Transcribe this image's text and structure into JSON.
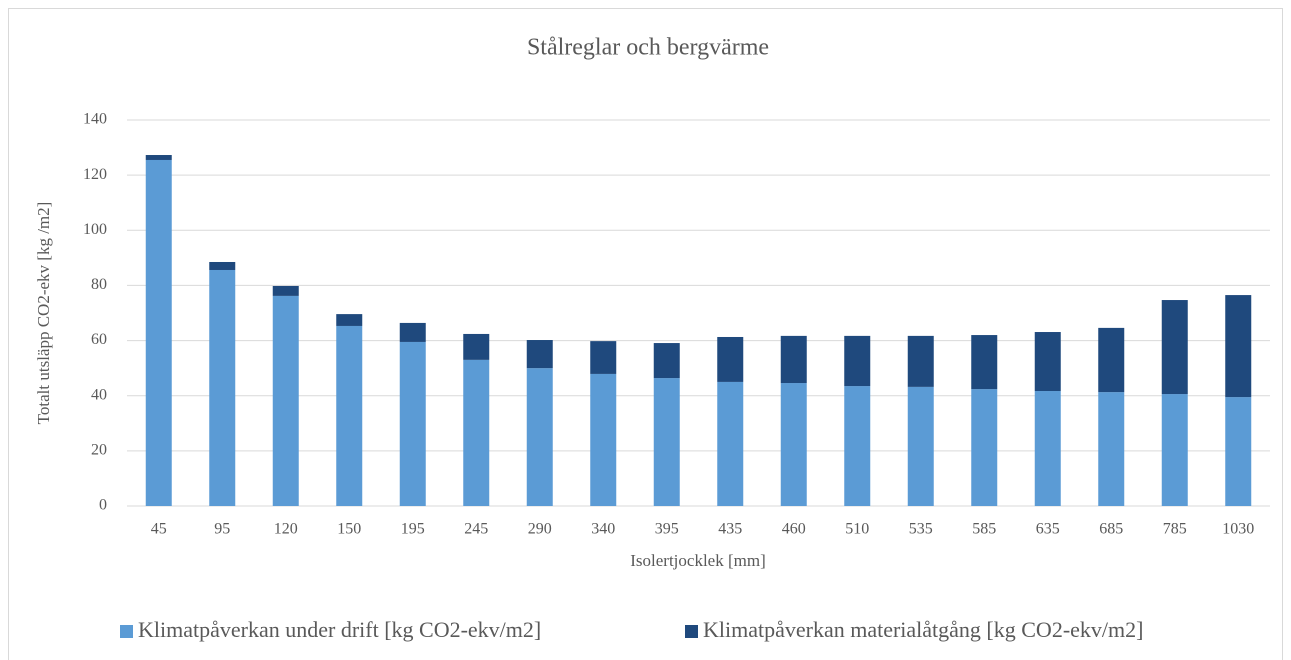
{
  "chart_data": {
    "type": "stacked_bar",
    "title": "Stålreglar och bergvärme",
    "x_label": "Isolertjocklek [mm]",
    "y_label": "Totalt utsläpp CO2-ekv [kg /m2]",
    "categories": [
      "45",
      "95",
      "120",
      "150",
      "195",
      "245",
      "290",
      "340",
      "395",
      "435",
      "460",
      "510",
      "535",
      "585",
      "635",
      "685",
      "785",
      "1030"
    ],
    "series": [
      {
        "name": "Klimatpåverkan under drift [kg CO2-ekv/m2]",
        "color": "#5b9bd5",
        "values": [
          125.5,
          85.6,
          76.2,
          65.3,
          59.5,
          53,
          50,
          47.9,
          46.4,
          45,
          44.6,
          43.5,
          43.2,
          42.4,
          41.7,
          41.3,
          40.6,
          39.5
        ]
      },
      {
        "name": "Klimatpåverkan materialåtgång [kg CO2-ekv/m2]",
        "color": "#1f497d",
        "values": [
          1.8,
          2.9,
          3.6,
          4.3,
          6.9,
          9.4,
          10.2,
          11.9,
          12.7,
          16.3,
          17.1,
          18.2,
          18.5,
          19.6,
          21.4,
          23.3,
          34.1,
          37
        ]
      }
    ],
    "ylim": [
      0,
      140
    ],
    "yticks": [
      0,
      20,
      40,
      60,
      80,
      100,
      120,
      140
    ],
    "grid": true,
    "legend": "bottom"
  }
}
